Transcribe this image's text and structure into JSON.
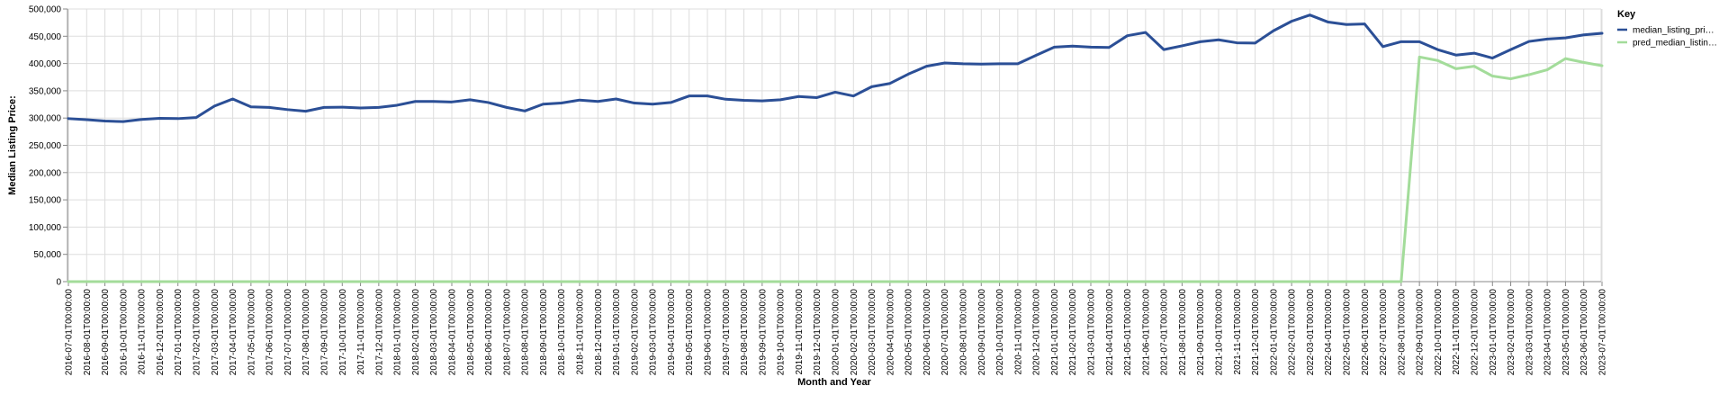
{
  "chart_data": {
    "type": "line",
    "xlabel": "Month and Year",
    "ylabel": "Median Listing Price:",
    "ylim": [
      0,
      500000
    ],
    "yticks": [
      "0",
      "50,000",
      "100,000",
      "150,000",
      "200,000",
      "250,000",
      "300,000",
      "350,000",
      "400,000",
      "450,000",
      "500,000"
    ],
    "grid": true,
    "legend": {
      "title": "Key",
      "placement": "top-right",
      "entries": [
        {
          "label": "median_listing_pri…",
          "color": "#2b4f96"
        },
        {
          "label": "pred_median_listin…",
          "color": "#a3dc9a"
        }
      ]
    },
    "x": [
      "2016-07-01T00:00:00",
      "2016-08-01T00:00:00",
      "2016-09-01T00:00:00",
      "2016-10-01T00:00:00",
      "2016-11-01T00:00:00",
      "2016-12-01T00:00:00",
      "2017-01-01T00:00:00",
      "2017-02-01T00:00:00",
      "2017-03-01T00:00:00",
      "2017-04-01T00:00:00",
      "2017-05-01T00:00:00",
      "2017-06-01T00:00:00",
      "2017-07-01T00:00:00",
      "2017-08-01T00:00:00",
      "2017-09-01T00:00:00",
      "2017-10-01T00:00:00",
      "2017-11-01T00:00:00",
      "2017-12-01T00:00:00",
      "2018-01-01T00:00:00",
      "2018-02-01T00:00:00",
      "2018-03-01T00:00:00",
      "2018-04-01T00:00:00",
      "2018-05-01T00:00:00",
      "2018-06-01T00:00:00",
      "2018-07-01T00:00:00",
      "2018-08-01T00:00:00",
      "2018-09-01T00:00:00",
      "2018-10-01T00:00:00",
      "2018-11-01T00:00:00",
      "2018-12-01T00:00:00",
      "2019-01-01T00:00:00",
      "2019-02-01T00:00:00",
      "2019-03-01T00:00:00",
      "2019-04-01T00:00:00",
      "2019-05-01T00:00:00",
      "2019-06-01T00:00:00",
      "2019-07-01T00:00:00",
      "2019-08-01T00:00:00",
      "2019-09-01T00:00:00",
      "2019-10-01T00:00:00",
      "2019-11-01T00:00:00",
      "2019-12-01T00:00:00",
      "2020-01-01T00:00:00",
      "2020-02-01T00:00:00",
      "2020-03-01T00:00:00",
      "2020-04-01T00:00:00",
      "2020-05-01T00:00:00",
      "2020-06-01T00:00:00",
      "2020-07-01T00:00:00",
      "2020-08-01T00:00:00",
      "2020-09-01T00:00:00",
      "2020-10-01T00:00:00",
      "2020-11-01T00:00:00",
      "2020-12-01T00:00:00",
      "2021-01-01T00:00:00",
      "2021-02-01T00:00:00",
      "2021-03-01T00:00:00",
      "2021-04-01T00:00:00",
      "2021-05-01T00:00:00",
      "2021-06-01T00:00:00",
      "2021-07-01T00:00:00",
      "2021-08-01T00:00:00",
      "2021-09-01T00:00:00",
      "2021-10-01T00:00:00",
      "2021-11-01T00:00:00",
      "2021-12-01T00:00:00",
      "2022-01-01T00:00:00",
      "2022-02-01T00:00:00",
      "2022-03-01T00:00:00",
      "2022-04-01T00:00:00",
      "2022-05-01T00:00:00",
      "2022-06-01T00:00:00",
      "2022-07-01T00:00:00",
      "2022-08-01T00:00:00",
      "2022-09-01T00:00:00",
      "2022-10-01T00:00:00",
      "2022-11-01T00:00:00",
      "2022-12-01T00:00:00",
      "2023-01-01T00:00:00",
      "2023-02-01T00:00:00",
      "2023-03-01T00:00:00",
      "2023-04-01T00:00:00",
      "2023-05-01T00:00:00",
      "2023-06-01T00:00:00",
      "2023-07-01T00:00:00"
    ],
    "series": [
      {
        "name": "median_listing_pri…",
        "color": "#2b4f96",
        "values": [
          299000,
          297000,
          294500,
          293500,
          297500,
          299500,
          299000,
          301000,
          322000,
          335000,
          320500,
          319500,
          315500,
          312500,
          319500,
          320000,
          318500,
          319500,
          323500,
          330500,
          330500,
          329500,
          333500,
          328500,
          319500,
          313000,
          325500,
          327500,
          333000,
          330500,
          335000,
          327500,
          325500,
          328500,
          340500,
          340500,
          334500,
          332500,
          331500,
          333500,
          339500,
          337500,
          347500,
          340500,
          357500,
          363500,
          380500,
          395000,
          401000,
          399500,
          399000,
          399500,
          399500,
          415000,
          430000,
          432000,
          430000,
          429500,
          451000,
          457000,
          425500,
          432500,
          440000,
          443500,
          438000,
          437500,
          460000,
          477500,
          489000,
          476000,
          471500,
          472500,
          431000,
          440000,
          440000,
          425500,
          415500,
          419000,
          410000,
          425500,
          440500,
          445000,
          447000,
          452500,
          455500
        ]
      },
      {
        "name": "pred_median_listin…",
        "color": "#a3dc9a",
        "values": [
          0,
          0,
          0,
          0,
          0,
          0,
          0,
          0,
          0,
          0,
          0,
          0,
          0,
          0,
          0,
          0,
          0,
          0,
          0,
          0,
          0,
          0,
          0,
          0,
          0,
          0,
          0,
          0,
          0,
          0,
          0,
          0,
          0,
          0,
          0,
          0,
          0,
          0,
          0,
          0,
          0,
          0,
          0,
          0,
          0,
          0,
          0,
          0,
          0,
          0,
          0,
          0,
          0,
          0,
          0,
          0,
          0,
          0,
          0,
          0,
          0,
          0,
          0,
          0,
          0,
          0,
          0,
          0,
          0,
          0,
          0,
          0,
          0,
          0,
          412000,
          405500,
          390500,
          395000,
          377000,
          372000,
          379500,
          388500,
          409000,
          402000,
          396000
        ]
      }
    ]
  }
}
